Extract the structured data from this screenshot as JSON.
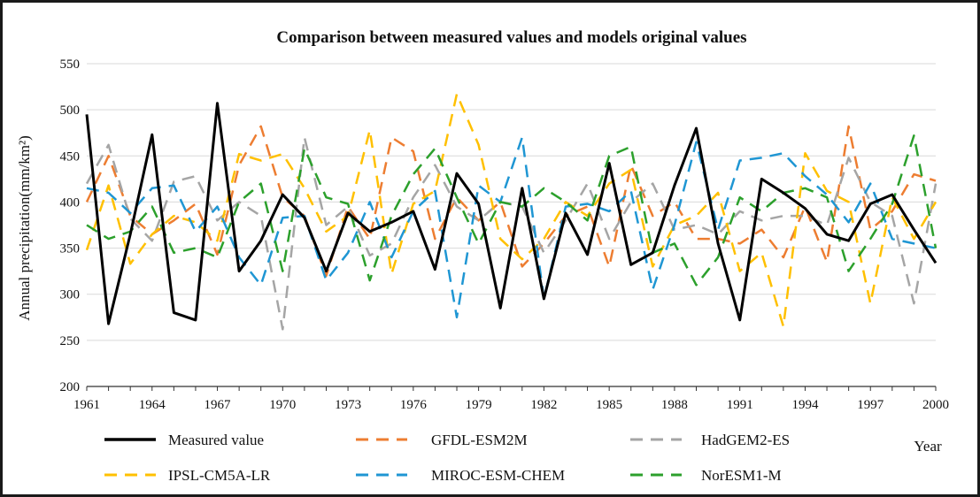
{
  "chart_data": {
    "type": "line",
    "title": "Comparison between measured values and models original values",
    "ylabel": "Annual precipitation(mm/km²)",
    "xlabel": "Year",
    "ylim": [
      200,
      550
    ],
    "yticks": [
      200,
      250,
      300,
      350,
      400,
      450,
      500,
      550
    ],
    "xlim": [
      1961,
      2000
    ],
    "xticks": [
      1961,
      1964,
      1967,
      1970,
      1973,
      1976,
      1979,
      1982,
      1985,
      1988,
      1991,
      1994,
      1997,
      2000
    ],
    "grid": "horizontal",
    "legend_position": "bottom",
    "x": [
      1961,
      1962,
      1963,
      1964,
      1965,
      1966,
      1967,
      1968,
      1969,
      1970,
      1971,
      1972,
      1973,
      1974,
      1975,
      1976,
      1977,
      1978,
      1979,
      1980,
      1981,
      1982,
      1983,
      1984,
      1985,
      1986,
      1987,
      1988,
      1989,
      1990,
      1991,
      1992,
      1993,
      1994,
      1995,
      1996,
      1997,
      1998,
      1999,
      2000
    ],
    "series": [
      {
        "name": "Measured value",
        "color": "#000000",
        "dashed": false,
        "width": 3,
        "values": [
          495,
          268,
          365,
          473,
          280,
          272,
          507,
          325,
          358,
          408,
          383,
          325,
          388,
          368,
          378,
          390,
          327,
          431,
          398,
          285,
          415,
          295,
          388,
          343,
          442,
          332,
          345,
          418,
          480,
          355,
          272,
          425,
          410,
          393,
          365,
          358,
          398,
          408,
          370,
          334
        ]
      },
      {
        "name": "GFDL-ESM2M",
        "color": "#ed7d31",
        "dashed": true,
        "width": 2.5,
        "values": [
          400,
          450,
          385,
          365,
          380,
          398,
          343,
          440,
          482,
          405,
          385,
          320,
          395,
          360,
          470,
          455,
          360,
          405,
          380,
          400,
          330,
          355,
          385,
          395,
          330,
          440,
          385,
          400,
          360,
          360,
          355,
          370,
          340,
          395,
          335,
          482,
          370,
          390,
          430,
          423
        ]
      },
      {
        "name": "HadGEM2-ES",
        "color": "#a5a5a5",
        "dashed": true,
        "width": 2.5,
        "values": [
          420,
          462,
          382,
          358,
          422,
          428,
          380,
          400,
          385,
          262,
          470,
          375,
          395,
          342,
          355,
          405,
          440,
          395,
          380,
          400,
          395,
          345,
          380,
          420,
          360,
          400,
          420,
          370,
          375,
          365,
          390,
          380,
          385,
          385,
          375,
          448,
          400,
          385,
          290,
          420
        ]
      },
      {
        "name": "IPSL-CM5A-LR",
        "color": "#ffc000",
        "dashed": true,
        "width": 2.5,
        "values": [
          348,
          418,
          333,
          365,
          385,
          378,
          358,
          452,
          445,
          452,
          415,
          368,
          385,
          478,
          322,
          398,
          412,
          517,
          462,
          360,
          338,
          360,
          400,
          385,
          420,
          435,
          330,
          375,
          385,
          410,
          325,
          345,
          265,
          453,
          412,
          400,
          290,
          405,
          360,
          400
        ]
      },
      {
        "name": "MIROC-ESM-CHEM",
        "color": "#1f96d3",
        "dashed": true,
        "width": 2.5,
        "values": [
          415,
          410,
          388,
          415,
          418,
          368,
          395,
          340,
          310,
          383,
          385,
          315,
          345,
          400,
          340,
          390,
          412,
          275,
          418,
          400,
          470,
          295,
          395,
          398,
          390,
          412,
          305,
          375,
          465,
          370,
          445,
          448,
          453,
          428,
          408,
          378,
          420,
          360,
          355,
          350
        ]
      },
      {
        "name": "NorESM1-M",
        "color": "#2ca02c",
        "dashed": true,
        "width": 2.5,
        "values": [
          375,
          360,
          368,
          395,
          345,
          350,
          340,
          400,
          420,
          325,
          458,
          405,
          398,
          315,
          385,
          430,
          458,
          405,
          355,
          400,
          395,
          415,
          400,
          380,
          450,
          460,
          345,
          355,
          310,
          340,
          405,
          390,
          410,
          415,
          405,
          325,
          360,
          398,
          472,
          350
        ]
      }
    ]
  }
}
